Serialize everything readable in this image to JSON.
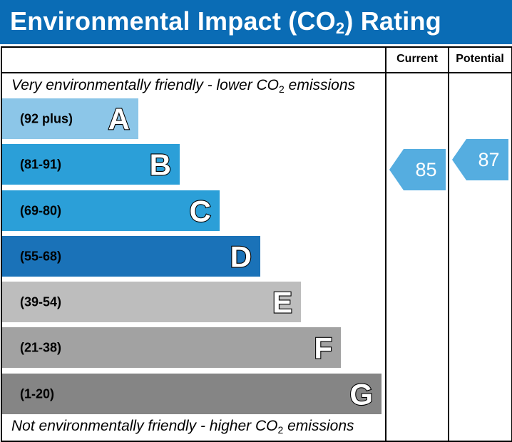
{
  "header": {
    "title_pre": "Environmental Impact (CO",
    "title_sub": "2",
    "title_post": ") Rating"
  },
  "columns": {
    "current": "Current",
    "potential": "Potential"
  },
  "notes": {
    "top_pre": "Very environmentally friendly - lower CO",
    "top_sub": "2",
    "top_post": " emissions",
    "bottom_pre": "Not environmentally friendly - higher CO",
    "bottom_sub": "2",
    "bottom_post": " emissions"
  },
  "chart_data": {
    "type": "table",
    "bands": [
      {
        "letter": "A",
        "range": "(92 plus)",
        "color": "#8cc6e8"
      },
      {
        "letter": "B",
        "range": "(81-91)",
        "color": "#2b9fd8"
      },
      {
        "letter": "C",
        "range": "(69-80)",
        "color": "#2b9fd8"
      },
      {
        "letter": "D",
        "range": "(55-68)",
        "color": "#1a72b8"
      },
      {
        "letter": "E",
        "range": "(39-54)",
        "color": "#bdbdbd"
      },
      {
        "letter": "F",
        "range": "(21-38)",
        "color": "#a2a2a2"
      },
      {
        "letter": "G",
        "range": "(1-20)",
        "color": "#858585"
      }
    ],
    "current": {
      "value": 85,
      "label": "85",
      "band": "B",
      "color": "#55ade0"
    },
    "potential": {
      "value": 87,
      "label": "87",
      "band": "B",
      "color": "#55ade0"
    }
  }
}
